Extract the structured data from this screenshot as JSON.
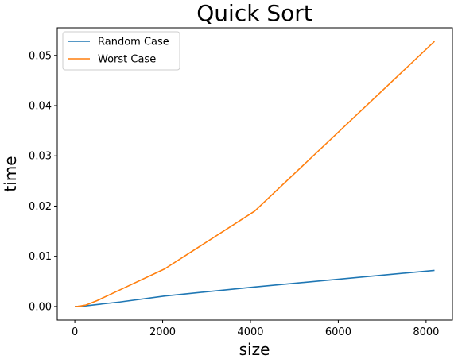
{
  "chart_data": {
    "type": "line",
    "title": "Quick Sort",
    "xlabel": "size",
    "ylabel": "time",
    "xlim": [
      -400,
      8600
    ],
    "ylim": [
      -0.0027,
      0.0555
    ],
    "xticks": [
      0,
      2000,
      4000,
      6000,
      8000
    ],
    "xtick_labels": [
      "0",
      "2000",
      "4000",
      "6000",
      "8000"
    ],
    "yticks": [
      0.0,
      0.01,
      0.02,
      0.03,
      0.04,
      0.05
    ],
    "ytick_labels": [
      "0.00",
      "0.01",
      "0.02",
      "0.03",
      "0.04",
      "0.05"
    ],
    "grid": false,
    "legend_position": "top-left",
    "series": [
      {
        "name": "Random Case",
        "color": "#1f77b4",
        "x": [
          1,
          2,
          4,
          8,
          16,
          32,
          64,
          128,
          256,
          512,
          1024,
          2048,
          4096,
          8192
        ],
        "y": [
          0.0,
          0.0,
          0.0,
          0.0,
          0.0,
          0.0,
          2e-05,
          6e-05,
          0.00014,
          0.0004,
          0.0009,
          0.0021,
          0.0039,
          0.0072
        ]
      },
      {
        "name": "Worst Case",
        "color": "#ff7f0e",
        "x": [
          1,
          2,
          4,
          8,
          16,
          32,
          64,
          128,
          256,
          512,
          1024,
          2048,
          4096,
          8192
        ],
        "y": [
          0.0,
          0.0,
          0.0,
          0.0,
          0.0,
          0.0,
          3e-05,
          0.0001,
          0.0003,
          0.0012,
          0.0033,
          0.0075,
          0.019,
          0.0528
        ]
      }
    ]
  }
}
